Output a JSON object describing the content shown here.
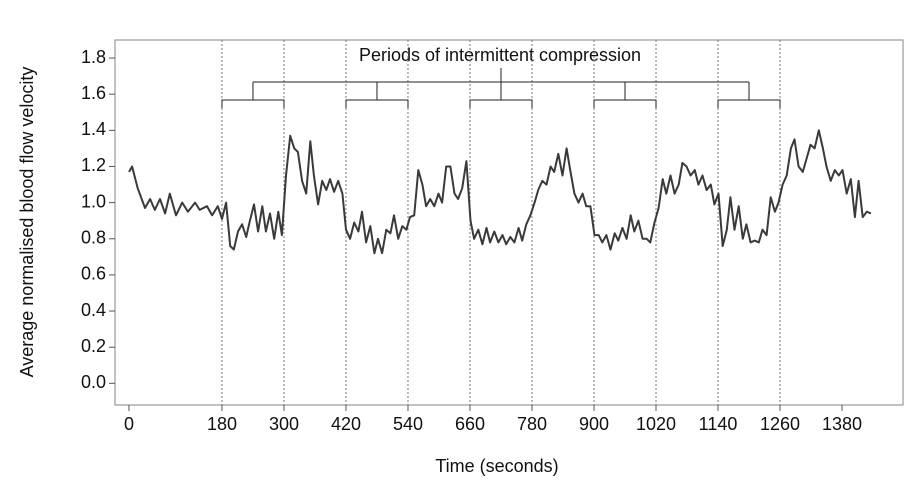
{
  "chart_data": {
    "type": "line",
    "y_label": "Average normalised blood flow velocity",
    "x_label": "Time (seconds)",
    "annotation": "Periods of intermittent compression",
    "xlim": [
      -27,
      1498
    ],
    "ylim": [
      -0.12,
      1.9
    ],
    "xticks": [
      0,
      180,
      300,
      420,
      540,
      660,
      780,
      900,
      1020,
      1140,
      1260,
      1380
    ],
    "yticks": [
      {
        "value": 0,
        "label": "0.0"
      },
      0.2,
      0.4,
      0.6,
      0.8,
      {
        "value": 1,
        "label": "1.0"
      },
      1.2,
      1.4,
      1.6,
      1.8
    ],
    "vlines": [
      180,
      300,
      420,
      540,
      660,
      780,
      900,
      1020,
      1140,
      1260
    ],
    "color": "#3a3a3a",
    "x": [
      0,
      6,
      17,
      31,
      41,
      50,
      60,
      70,
      79,
      91,
      103,
      114,
      128,
      137,
      151,
      161,
      172,
      180,
      188,
      196,
      203,
      211,
      219,
      227,
      234,
      242,
      250,
      258,
      265,
      273,
      281,
      289,
      296,
      304,
      312,
      320,
      327,
      335,
      343,
      351,
      358,
      366,
      374,
      382,
      389,
      397,
      405,
      413,
      420,
      428,
      436,
      444,
      451,
      459,
      467,
      475,
      482,
      490,
      498,
      506,
      513,
      521,
      529,
      537,
      544,
      552,
      560,
      568,
      575,
      583,
      591,
      599,
      606,
      614,
      622,
      630,
      637,
      645,
      653,
      661,
      668,
      676,
      684,
      692,
      699,
      707,
      715,
      723,
      730,
      738,
      746,
      754,
      761,
      769,
      777,
      785,
      792,
      800,
      808,
      816,
      823,
      831,
      839,
      847,
      854,
      862,
      870,
      878,
      885,
      893,
      901,
      909,
      916,
      924,
      932,
      940,
      947,
      955,
      963,
      971,
      978,
      986,
      994,
      1002,
      1009,
      1017,
      1025,
      1033,
      1040,
      1048,
      1056,
      1064,
      1071,
      1079,
      1087,
      1095,
      1102,
      1110,
      1118,
      1126,
      1133,
      1141,
      1149,
      1157,
      1164,
      1172,
      1180,
      1188,
      1195,
      1203,
      1211,
      1219,
      1226,
      1234,
      1242,
      1250,
      1257,
      1265,
      1273,
      1281,
      1288,
      1296,
      1304,
      1312,
      1319,
      1327,
      1335,
      1343,
      1350,
      1358,
      1366,
      1374,
      1381,
      1389,
      1397,
      1405,
      1412,
      1420,
      1428,
      1436
    ],
    "values": [
      1.17,
      1.2,
      1.08,
      0.97,
      1.02,
      0.96,
      1.02,
      0.94,
      1.05,
      0.93,
      1.0,
      0.95,
      1.0,
      0.96,
      0.98,
      0.93,
      0.98,
      0.91,
      1.0,
      0.76,
      0.74,
      0.84,
      0.88,
      0.81,
      0.9,
      0.99,
      0.84,
      0.98,
      0.84,
      0.94,
      0.8,
      0.95,
      0.82,
      1.15,
      1.37,
      1.3,
      1.28,
      1.12,
      1.05,
      1.34,
      1.15,
      0.99,
      1.12,
      1.07,
      1.13,
      1.06,
      1.12,
      1.05,
      0.85,
      0.8,
      0.89,
      0.84,
      0.95,
      0.78,
      0.87,
      0.72,
      0.8,
      0.72,
      0.85,
      0.83,
      0.93,
      0.8,
      0.87,
      0.85,
      0.92,
      0.93,
      1.18,
      1.1,
      0.98,
      1.02,
      0.98,
      1.05,
      1.0,
      1.2,
      1.2,
      1.05,
      1.02,
      1.08,
      1.23,
      0.9,
      0.8,
      0.85,
      0.77,
      0.86,
      0.78,
      0.84,
      0.78,
      0.82,
      0.77,
      0.81,
      0.78,
      0.86,
      0.79,
      0.88,
      0.93,
      1.0,
      1.07,
      1.12,
      1.1,
      1.2,
      1.17,
      1.27,
      1.15,
      1.3,
      1.18,
      1.05,
      1.0,
      1.05,
      0.98,
      0.98,
      0.82,
      0.82,
      0.78,
      0.82,
      0.74,
      0.83,
      0.79,
      0.86,
      0.8,
      0.93,
      0.84,
      0.9,
      0.8,
      0.8,
      0.78,
      0.89,
      0.97,
      1.13,
      1.05,
      1.15,
      1.05,
      1.1,
      1.22,
      1.2,
      1.15,
      1.18,
      1.1,
      1.15,
      1.07,
      1.1,
      0.99,
      1.05,
      0.76,
      0.85,
      1.03,
      0.85,
      0.98,
      0.8,
      0.88,
      0.78,
      0.79,
      0.78,
      0.85,
      0.82,
      1.03,
      0.95,
      1.0,
      1.1,
      1.15,
      1.3,
      1.35,
      1.2,
      1.17,
      1.25,
      1.32,
      1.3,
      1.4,
      1.3,
      1.2,
      1.12,
      1.18,
      1.15,
      1.18,
      1.05,
      1.13,
      0.92,
      1.12,
      0.92,
      0.95,
      0.94
    ]
  }
}
